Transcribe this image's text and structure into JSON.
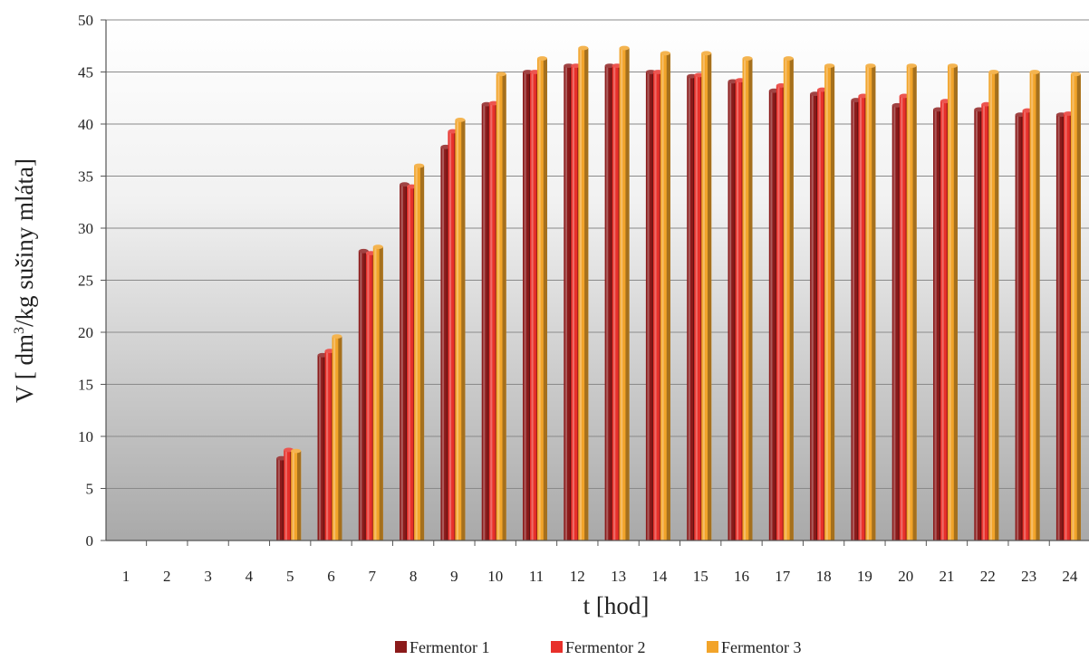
{
  "chart_data": {
    "type": "bar",
    "title": "",
    "xlabel": "t [hod]",
    "ylabel_parts": [
      "V [ dm",
      "3",
      "/kg sušiny mláta]"
    ],
    "categories": [
      "1",
      "2",
      "3",
      "4",
      "5",
      "6",
      "7",
      "8",
      "9",
      "10",
      "11",
      "12",
      "13",
      "14",
      "15",
      "16",
      "17",
      "18",
      "19",
      "20",
      "21",
      "22",
      "23",
      "24"
    ],
    "ylim": [
      0,
      50
    ],
    "yticks": [
      0,
      5,
      10,
      15,
      20,
      25,
      30,
      35,
      40,
      45,
      50
    ],
    "grid": true,
    "legend_position": "bottom",
    "series": [
      {
        "name": "Fermentor 1",
        "color": "#8B1A1A",
        "values": [
          0,
          0,
          0,
          0,
          7.9,
          17.8,
          27.8,
          34.2,
          37.8,
          41.9,
          45.0,
          45.6,
          45.6,
          45.0,
          44.6,
          44.1,
          43.2,
          42.9,
          42.3,
          41.8,
          41.4,
          41.4,
          40.9,
          40.9
        ]
      },
      {
        "name": "Fermentor 2",
        "color": "#E8302A",
        "values": [
          0,
          0,
          0,
          0,
          8.7,
          18.2,
          27.6,
          34.0,
          39.3,
          42.0,
          45.0,
          45.6,
          45.6,
          45.0,
          44.7,
          44.2,
          43.7,
          43.3,
          42.7,
          42.7,
          42.2,
          41.9,
          41.3,
          41.0
        ]
      },
      {
        "name": "Fermentor 3",
        "color": "#F2A42A",
        "values": [
          0,
          0,
          0,
          0,
          8.6,
          19.6,
          28.2,
          36.0,
          40.4,
          44.8,
          46.3,
          47.3,
          47.3,
          46.8,
          46.8,
          46.3,
          46.3,
          45.6,
          45.6,
          45.6,
          45.6,
          45.0,
          45.0,
          44.8
        ]
      }
    ]
  }
}
